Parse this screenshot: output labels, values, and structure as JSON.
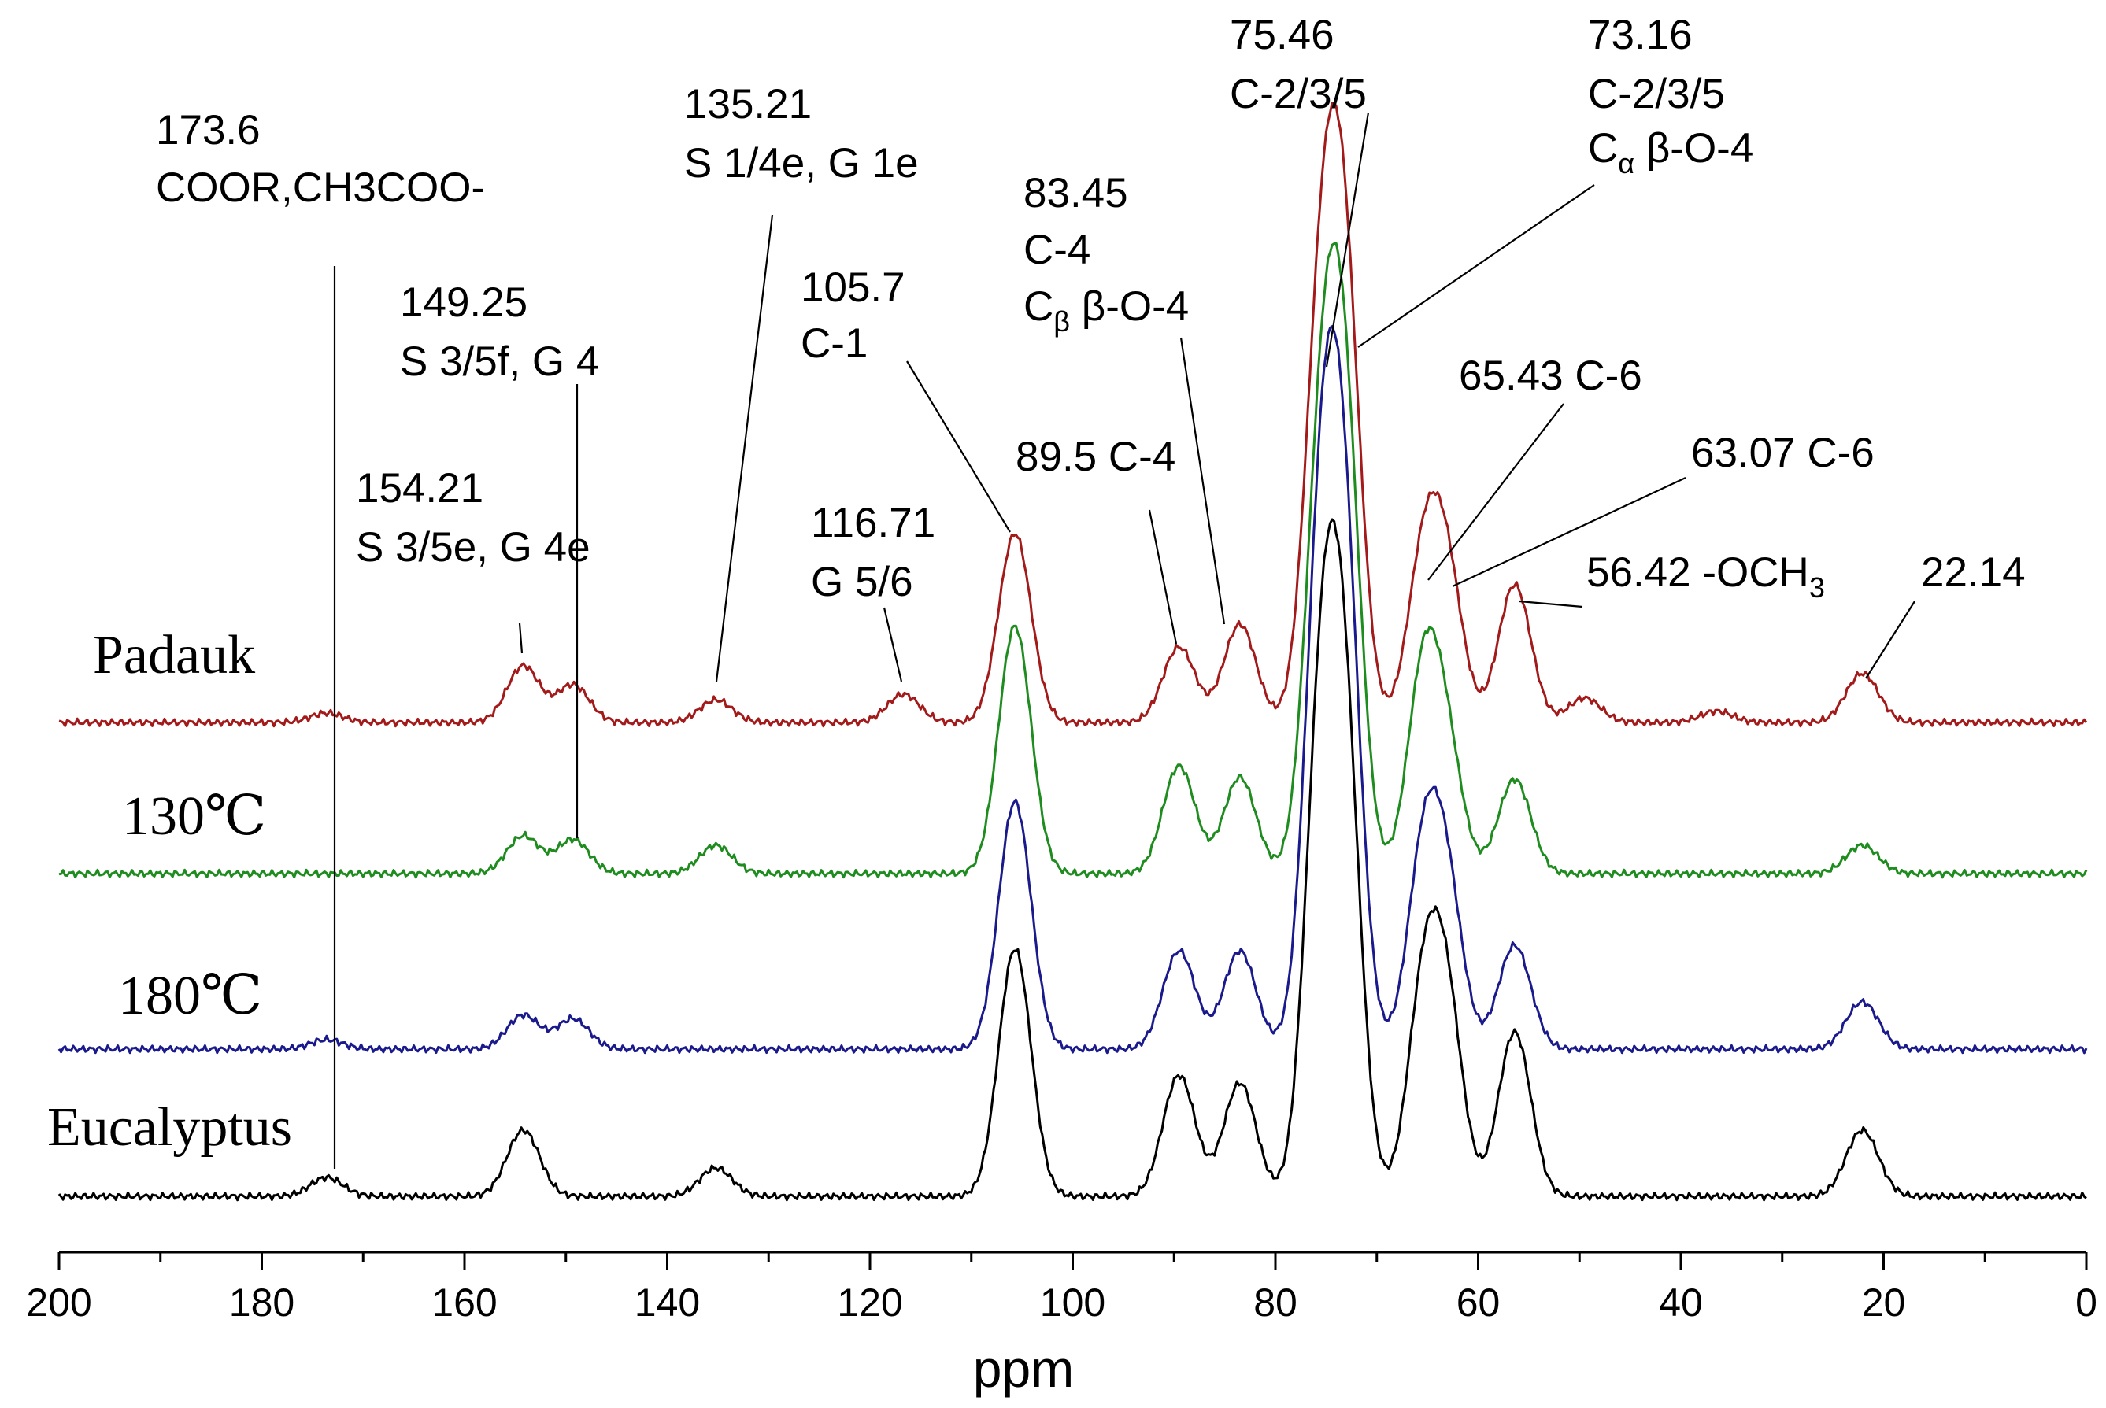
{
  "chart_data": {
    "type": "line",
    "title": "",
    "xlabel": "ppm",
    "ylabel": "",
    "x_axis": {
      "range": [
        200,
        0
      ],
      "reversed": true,
      "major_ticks": [
        200,
        180,
        160,
        140,
        120,
        100,
        80,
        60,
        40,
        20,
        0
      ],
      "tick_labels": [
        "200",
        "180",
        "160",
        "140",
        "120",
        "100",
        "80",
        "60",
        "40",
        "20",
        "0"
      ]
    },
    "legend": "labels placed beside each trace on the left",
    "series": [
      {
        "name": "Padauk",
        "color": "#a31a1a",
        "peaks": [
          [
            173.6,
            0.05
          ],
          [
            154.2,
            0.3
          ],
          [
            149.3,
            0.2
          ],
          [
            135.2,
            0.12
          ],
          [
            116.7,
            0.15
          ],
          [
            105.7,
            1.0
          ],
          [
            89.5,
            0.4
          ],
          [
            83.5,
            0.52
          ],
          [
            75.5,
            2.04
          ],
          [
            73.2,
            2.2
          ],
          [
            65.4,
            0.83
          ],
          [
            63.1,
            0.75
          ],
          [
            56.4,
            0.73
          ],
          [
            49.5,
            0.13
          ],
          [
            36.5,
            0.06
          ],
          [
            22.1,
            0.26
          ]
        ]
      },
      {
        "name": "130℃",
        "color": "#1e8c1e",
        "peaks": [
          [
            154.2,
            0.2
          ],
          [
            149.3,
            0.18
          ],
          [
            135.2,
            0.15
          ],
          [
            105.7,
            1.31
          ],
          [
            89.5,
            0.57
          ],
          [
            83.5,
            0.51
          ],
          [
            75.5,
            2.06
          ],
          [
            73.2,
            2.26
          ],
          [
            65.4,
            1.03
          ],
          [
            63.1,
            0.6
          ],
          [
            56.4,
            0.5
          ],
          [
            22.1,
            0.15
          ]
        ]
      },
      {
        "name": "180℃",
        "color": "#1a1a8c",
        "peaks": [
          [
            173.6,
            0.05
          ],
          [
            154.2,
            0.18
          ],
          [
            149.3,
            0.16
          ],
          [
            105.7,
            1.31
          ],
          [
            89.5,
            0.52
          ],
          [
            83.5,
            0.52
          ],
          [
            75.5,
            2.55
          ],
          [
            73.2,
            2.4
          ],
          [
            65.4,
            0.98
          ],
          [
            63.1,
            0.8
          ],
          [
            56.4,
            0.55
          ],
          [
            22.1,
            0.25
          ]
        ]
      },
      {
        "name": "Eucalyptus",
        "color": "#000000",
        "peaks": [
          [
            173.6,
            0.1
          ],
          [
            154.2,
            0.35
          ],
          [
            135.2,
            0.15
          ],
          [
            105.7,
            1.31
          ],
          [
            89.5,
            0.64
          ],
          [
            83.5,
            0.6
          ],
          [
            75.5,
            2.35
          ],
          [
            73.2,
            2.28
          ],
          [
            65.4,
            1.02
          ],
          [
            63.1,
            0.95
          ],
          [
            56.4,
            0.87
          ],
          [
            22.1,
            0.35
          ]
        ]
      }
    ],
    "annotations": [
      {
        "shift": "173.6",
        "assignment": "COOR,CH3COO-"
      },
      {
        "shift": "149.25",
        "assignment": "S 3/5f, G 4"
      },
      {
        "shift": "154.21",
        "assignment": "S 3/5e, G 4e"
      },
      {
        "shift": "135.21",
        "assignment": "S 1/4e, G 1e"
      },
      {
        "shift": "116.71",
        "assignment": "G 5/6"
      },
      {
        "shift": "105.7",
        "assignment": "C-1"
      },
      {
        "shift": "89.5",
        "assignment": "C-4"
      },
      {
        "shift": "83.45",
        "assignment": "C-4",
        "assignment2": "C",
        "assignment2_sub": "β",
        "assignment2_rest": " β-O-4"
      },
      {
        "shift": "75.46",
        "assignment": "C-2/3/5"
      },
      {
        "shift": "73.16",
        "assignment": "C-2/3/5",
        "assignment2": "C",
        "assignment2_sub": "α",
        "assignment2_rest": "  β-O-4"
      },
      {
        "shift": "65.43",
        "assignment": "C-6"
      },
      {
        "shift": "63.07",
        "assignment": "C-6"
      },
      {
        "shift": "56.42",
        "assignment": "-OCH",
        "assignment_sub": "3"
      },
      {
        "shift": "22.14",
        "assignment": ""
      }
    ]
  }
}
